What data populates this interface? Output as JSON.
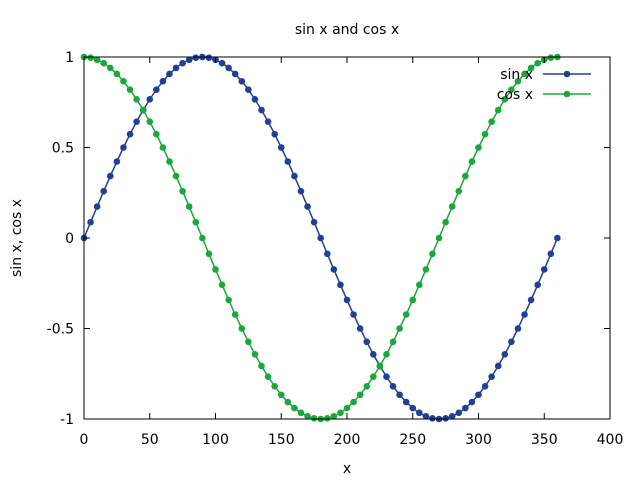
{
  "chart_data": {
    "type": "line",
    "title": "sin x and cos x",
    "xlabel": "x",
    "ylabel": "sin x, cos x",
    "xlim": [
      0,
      400
    ],
    "ylim": [
      -1,
      1
    ],
    "xticks": [
      0,
      50,
      100,
      150,
      200,
      250,
      300,
      350,
      400
    ],
    "yticks": [
      -1,
      -0.5,
      0,
      0.5,
      1
    ],
    "xtick_labels": [
      "0",
      "50",
      "100",
      "150",
      "200",
      "250",
      "300",
      "350",
      "400"
    ],
    "ytick_labels": [
      "-1",
      "-0.5",
      "0",
      "0.5",
      "1"
    ],
    "grid": false,
    "legend": "top-right",
    "x": [
      0,
      5,
      10,
      15,
      20,
      25,
      30,
      35,
      40,
      45,
      50,
      55,
      60,
      65,
      70,
      75,
      80,
      85,
      90,
      95,
      100,
      105,
      110,
      115,
      120,
      125,
      130,
      135,
      140,
      145,
      150,
      155,
      160,
      165,
      170,
      175,
      180,
      185,
      190,
      195,
      200,
      205,
      210,
      215,
      220,
      225,
      230,
      235,
      240,
      245,
      250,
      255,
      260,
      265,
      270,
      275,
      280,
      285,
      290,
      295,
      300,
      305,
      310,
      315,
      320,
      325,
      330,
      335,
      340,
      345,
      350,
      355,
      360
    ],
    "series": [
      {
        "name": "sin x",
        "color": "#1f3f99",
        "values": [
          0,
          0.0872,
          0.1736,
          0.2588,
          0.342,
          0.4226,
          0.5,
          0.5736,
          0.6428,
          0.7071,
          0.766,
          0.8192,
          0.866,
          0.9063,
          0.9397,
          0.9659,
          0.9848,
          0.9962,
          1,
          0.9962,
          0.9848,
          0.9659,
          0.9397,
          0.9063,
          0.866,
          0.8192,
          0.766,
          0.7071,
          0.6428,
          0.5736,
          0.5,
          0.4226,
          0.342,
          0.2588,
          0.1736,
          0.0872,
          0,
          -0.0872,
          -0.1736,
          -0.2588,
          -0.342,
          -0.4226,
          -0.5,
          -0.5736,
          -0.6428,
          -0.7071,
          -0.766,
          -0.8192,
          -0.866,
          -0.9063,
          -0.9397,
          -0.9659,
          -0.9848,
          -0.9962,
          -1,
          -0.9962,
          -0.9848,
          -0.9659,
          -0.9397,
          -0.9063,
          -0.866,
          -0.8192,
          -0.766,
          -0.7071,
          -0.6428,
          -0.5736,
          -0.5,
          -0.4226,
          -0.342,
          -0.2588,
          -0.1736,
          -0.0872,
          0
        ]
      },
      {
        "name": "cos x",
        "color": "#1aa83a",
        "values": [
          1,
          0.9962,
          0.9848,
          0.9659,
          0.9397,
          0.9063,
          0.866,
          0.8192,
          0.766,
          0.7071,
          0.6428,
          0.5736,
          0.5,
          0.4226,
          0.342,
          0.2588,
          0.1736,
          0.0872,
          0,
          -0.0872,
          -0.1736,
          -0.2588,
          -0.342,
          -0.4226,
          -0.5,
          -0.5736,
          -0.6428,
          -0.7071,
          -0.766,
          -0.8192,
          -0.866,
          -0.9063,
          -0.9397,
          -0.9659,
          -0.9848,
          -0.9962,
          -1,
          -0.9962,
          -0.9848,
          -0.9659,
          -0.9397,
          -0.9063,
          -0.866,
          -0.8192,
          -0.766,
          -0.7071,
          -0.6428,
          -0.5736,
          -0.5,
          -0.4226,
          -0.342,
          -0.2588,
          -0.1736,
          -0.0872,
          0,
          0.0872,
          0.1736,
          0.2588,
          0.342,
          0.4226,
          0.5,
          0.5736,
          0.6428,
          0.7071,
          0.766,
          0.8192,
          0.866,
          0.9063,
          0.9397,
          0.9659,
          0.9848,
          0.9962,
          1
        ]
      }
    ]
  }
}
